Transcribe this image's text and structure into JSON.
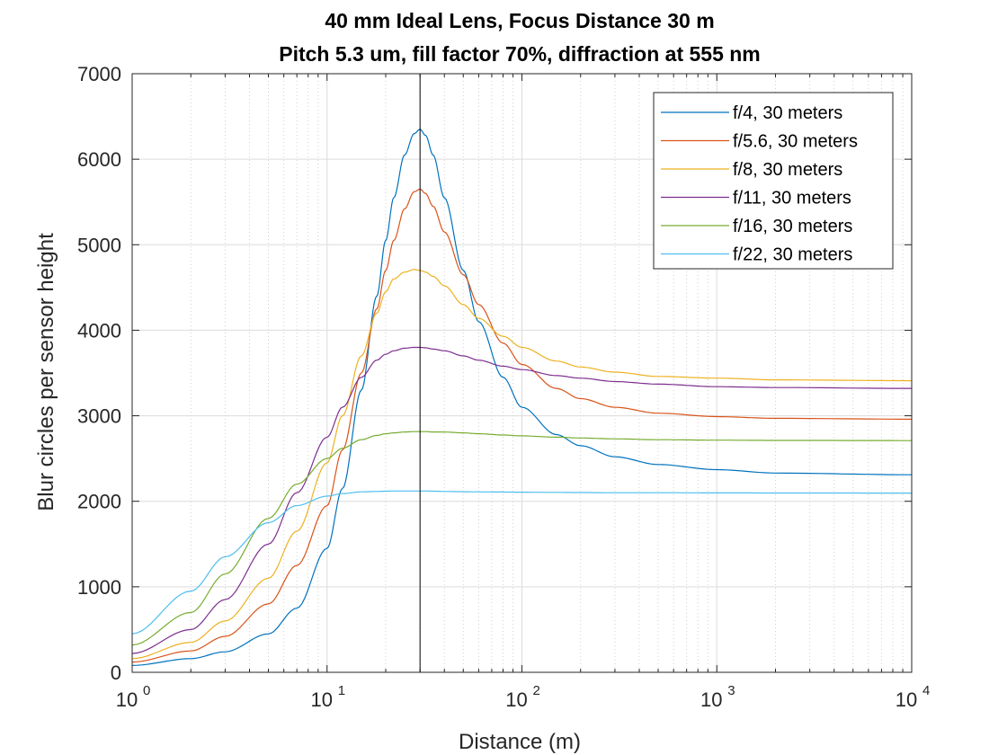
{
  "chart_data": {
    "type": "line",
    "title": [
      "40 mm Ideal Lens, Focus Distance 30 m",
      "Pitch 5.3 um, fill factor 70%, diffraction at 555 nm"
    ],
    "xlabel": "Distance (m)",
    "ylabel": "Blur circles per sensor height",
    "xscale": "log",
    "xlim": [
      1,
      10000
    ],
    "ylim": [
      0,
      7000
    ],
    "xticks": [
      {
        "value": 1,
        "base": "10",
        "exp": "0"
      },
      {
        "value": 10,
        "base": "10",
        "exp": "1"
      },
      {
        "value": 100,
        "base": "10",
        "exp": "2"
      },
      {
        "value": 1000,
        "base": "10",
        "exp": "3"
      },
      {
        "value": 10000,
        "base": "10",
        "exp": "4"
      }
    ],
    "yticks": [
      "0",
      "1000",
      "2000",
      "3000",
      "4000",
      "5000",
      "6000",
      "7000"
    ],
    "grid": "on",
    "legend_location": "top-right",
    "focus_marker_x": 30,
    "series": [
      {
        "name": "f/4, 30 meters",
        "color": "#0072BD",
        "x": [
          1,
          2,
          3,
          5,
          7,
          10,
          12,
          15,
          18,
          20,
          22,
          25,
          28,
          30,
          32,
          35,
          40,
          50,
          60,
          80,
          100,
          150,
          200,
          300,
          500,
          1000,
          2000,
          10000
        ],
        "y": [
          80,
          160,
          240,
          450,
          750,
          1450,
          2150,
          3300,
          4400,
          5050,
          5550,
          6050,
          6300,
          6350,
          6280,
          6050,
          5550,
          4700,
          4100,
          3450,
          3100,
          2780,
          2650,
          2520,
          2430,
          2370,
          2330,
          2310
        ]
      },
      {
        "name": "f/5.6, 30 meters",
        "color": "#D95319",
        "x": [
          1,
          2,
          3,
          5,
          7,
          10,
          12,
          15,
          18,
          20,
          22,
          25,
          28,
          30,
          32,
          35,
          40,
          50,
          60,
          80,
          100,
          150,
          200,
          300,
          500,
          1000,
          2000,
          10000
        ],
        "y": [
          120,
          250,
          420,
          800,
          1250,
          1950,
          2600,
          3500,
          4250,
          4700,
          5050,
          5420,
          5620,
          5650,
          5600,
          5450,
          5150,
          4650,
          4300,
          3850,
          3600,
          3320,
          3200,
          3100,
          3030,
          2990,
          2970,
          2960
        ]
      },
      {
        "name": "f/8, 30 meters",
        "color": "#EDB120",
        "x": [
          1,
          2,
          3,
          5,
          7,
          10,
          12,
          15,
          18,
          20,
          22,
          25,
          28,
          30,
          32,
          35,
          40,
          50,
          60,
          80,
          100,
          150,
          200,
          300,
          500,
          1000,
          2000,
          10000
        ],
        "y": [
          160,
          350,
          600,
          1100,
          1650,
          2450,
          3000,
          3700,
          4200,
          4450,
          4600,
          4680,
          4710,
          4700,
          4680,
          4630,
          4520,
          4300,
          4140,
          3930,
          3800,
          3640,
          3570,
          3510,
          3460,
          3440,
          3420,
          3410
        ]
      },
      {
        "name": "f/11, 30 meters",
        "color": "#7E2F8E",
        "x": [
          1,
          2,
          3,
          5,
          7,
          10,
          12,
          15,
          18,
          20,
          22,
          25,
          28,
          30,
          32,
          35,
          40,
          50,
          60,
          80,
          100,
          150,
          200,
          300,
          500,
          1000,
          2000,
          10000
        ],
        "y": [
          220,
          500,
          850,
          1500,
          2100,
          2750,
          3100,
          3450,
          3650,
          3720,
          3760,
          3790,
          3800,
          3800,
          3795,
          3780,
          3760,
          3700,
          3650,
          3580,
          3540,
          3470,
          3440,
          3400,
          3370,
          3340,
          3330,
          3320
        ]
      },
      {
        "name": "f/16, 30 meters",
        "color": "#77AC30",
        "x": [
          1,
          2,
          3,
          5,
          7,
          10,
          12,
          15,
          18,
          20,
          22,
          25,
          28,
          30,
          32,
          35,
          40,
          50,
          60,
          80,
          100,
          150,
          200,
          300,
          500,
          1000,
          2000,
          10000
        ],
        "y": [
          320,
          700,
          1150,
          1800,
          2200,
          2500,
          2620,
          2720,
          2770,
          2790,
          2800,
          2810,
          2815,
          2815,
          2815,
          2810,
          2810,
          2800,
          2790,
          2775,
          2765,
          2750,
          2740,
          2730,
          2720,
          2715,
          2712,
          2710
        ]
      },
      {
        "name": "f/22, 30 meters",
        "color": "#4DBEEE",
        "x": [
          1,
          2,
          3,
          5,
          7,
          10,
          12,
          15,
          18,
          20,
          22,
          25,
          28,
          30,
          32,
          35,
          40,
          50,
          60,
          80,
          100,
          150,
          200,
          300,
          500,
          1000,
          2000,
          10000
        ],
        "y": [
          450,
          950,
          1350,
          1750,
          1950,
          2060,
          2090,
          2110,
          2115,
          2118,
          2120,
          2120,
          2120,
          2120,
          2120,
          2118,
          2115,
          2112,
          2110,
          2108,
          2106,
          2104,
          2102,
          2100,
          2100,
          2098,
          2097,
          2096
        ]
      }
    ]
  }
}
